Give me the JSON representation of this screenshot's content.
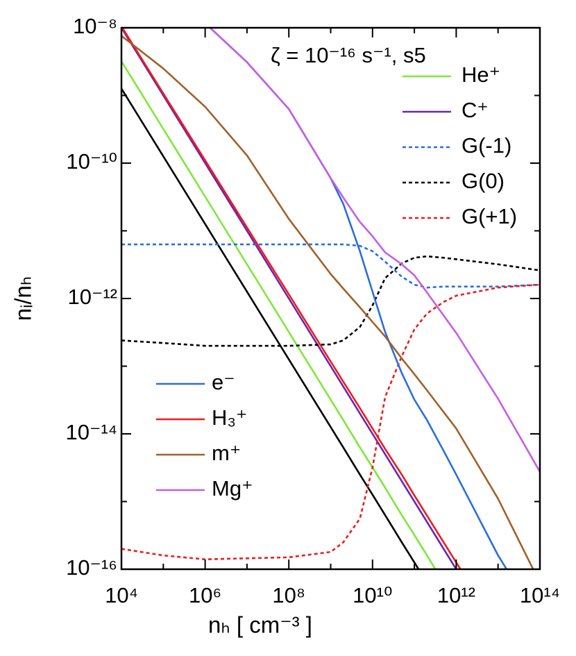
{
  "chart_data": {
    "type": "line",
    "annotation": "ζ = 10⁻¹⁶ s⁻¹, s5",
    "x_label": "nₕ [ cm⁻³ ]",
    "y_label": "nᵢ/nₕ",
    "xscale": "log",
    "yscale": "log",
    "xlim": [
      10000.0,
      100000000000000.0
    ],
    "ylim": [
      1e-16,
      1e-08
    ],
    "xticks": [
      {
        "value": 10000.0,
        "label": "10⁴"
      },
      {
        "value": 1000000.0,
        "label": "10⁶"
      },
      {
        "value": 100000000.0,
        "label": "10⁸"
      },
      {
        "value": 10000000000.0,
        "label": "10¹⁰"
      },
      {
        "value": 1000000000000.0,
        "label": "10¹²"
      },
      {
        "value": 100000000000000.0,
        "label": "10¹⁴"
      }
    ],
    "yticks": [
      {
        "value": 1e-16,
        "label": "10⁻¹⁶"
      },
      {
        "value": 1e-14,
        "label": "10⁻¹⁴"
      },
      {
        "value": 1e-12,
        "label": "10⁻¹²"
      },
      {
        "value": 1e-10,
        "label": "10⁻¹⁰"
      },
      {
        "value": 1e-08,
        "label": "10⁻⁸"
      }
    ],
    "xminorticks": [
      100000.0,
      10000000.0,
      1000000000.0,
      100000000000.0,
      10000000000000.0
    ],
    "yminorticks": [
      1e-15,
      1e-13,
      1e-11,
      1e-09
    ],
    "x": [
      10000.0,
      100000.0,
      1000000.0,
      10000000.0,
      100000000.0,
      1000000000.0,
      2000000000.0,
      5000000000.0,
      10000000000.0,
      20000000000.0,
      50000000000.0,
      100000000000.0,
      200000000000.0,
      500000000000.0,
      1000000000000.0,
      10000000000000.0,
      100000000000000.0
    ],
    "series": [
      {
        "color": "#000000",
        "dash": false,
        "values": [
          1.26e-09,
          1.26e-10,
          1.26e-11,
          1.26e-12,
          1.26e-13,
          1.26e-14,
          6.3e-15,
          2.5e-15,
          1.26e-15,
          6.3e-16,
          2.5e-16,
          1.26e-16,
          6.3e-17,
          null,
          null,
          null,
          null
        ]
      },
      {
        "name": "He⁺",
        "legend": "upper right",
        "color": "#7ee83a",
        "dash": false,
        "values": [
          3.2e-09,
          3.2e-10,
          3.2e-11,
          3.2e-12,
          3.2e-13,
          3.2e-14,
          1.6e-14,
          6.3e-15,
          3.2e-15,
          1.6e-15,
          6.3e-16,
          3.2e-16,
          1.6e-16,
          6.3e-17,
          null,
          null,
          null
        ]
      },
      {
        "name": "C⁺",
        "legend": "upper right",
        "color": "#6a22b8",
        "dash": false,
        "values": [
          1e-08,
          1e-09,
          1e-10,
          1e-11,
          1e-12,
          1e-13,
          5e-14,
          2e-14,
          1e-14,
          5e-15,
          2e-15,
          1e-15,
          5e-16,
          2e-16,
          1e-16,
          1e-17,
          null
        ]
      },
      {
        "name": "G(-1)",
        "legend": "upper right",
        "color": "#2a6de0",
        "dash": true,
        "values": [
          6.3e-12,
          6.3e-12,
          6.3e-12,
          6.3e-12,
          6.3e-12,
          6.3e-12,
          6.3e-12,
          6e-12,
          5e-12,
          3.5e-12,
          2.1e-12,
          1.6e-12,
          1.45e-12,
          1.5e-12,
          1.5e-12,
          1.5e-12,
          1.6e-12
        ]
      },
      {
        "name": "G(0)",
        "legend": "upper right",
        "color": "#000000",
        "dash": true,
        "values": [
          2.4e-13,
          2.2e-13,
          2e-13,
          2e-13,
          2e-13,
          2.1e-13,
          2.4e-13,
          3.8e-13,
          7.9e-13,
          2e-12,
          3.3e-12,
          4e-12,
          4.2e-12,
          4e-12,
          3.8e-12,
          3.2e-12,
          2.6e-12
        ]
      },
      {
        "name": "G(+1)",
        "legend": "upper right",
        "color": "#ee1c1c",
        "dash": true,
        "values": [
          2e-16,
          1.6e-16,
          1.4e-16,
          1.45e-16,
          1.5e-16,
          1.8e-16,
          2.5e-16,
          5.6e-16,
          3.2e-15,
          3.5e-14,
          1.4e-13,
          3.5e-13,
          6e-13,
          8.9e-13,
          1.1e-12,
          1.45e-12,
          1.6e-12
        ]
      },
      {
        "name": "e⁻",
        "legend": "lower left",
        "color": "#2a6de0",
        "dash": false,
        "values": [
          null,
          4.5e-08,
          1.17e-08,
          3.1e-09,
          6.3e-10,
          6e-11,
          2.5e-11,
          5e-12,
          1.26e-12,
          3.2e-13,
          7.9e-14,
          3.2e-14,
          1.6e-14,
          5.6e-15,
          2.5e-15,
          1.6e-16,
          1.6e-17
        ]
      },
      {
        "name": "H₃⁺",
        "legend": "lower left",
        "color": "#ee1c1c",
        "dash": false,
        "values": [
          1.05e-08,
          1.07e-09,
          1.1e-10,
          1.12e-11,
          1.15e-12,
          1.17e-13,
          5.9e-14,
          2.4e-14,
          1.2e-14,
          6e-15,
          2.5e-15,
          1.23e-15,
          6.2e-16,
          2.5e-16,
          1.26e-16,
          1.3e-17,
          null
        ]
      },
      {
        "name": "m⁺",
        "legend": "lower left",
        "color": "#a0612a",
        "dash": false,
        "values": [
          7.6e-09,
          2.5e-09,
          6.8e-10,
          1.3e-10,
          1.5e-11,
          2.3e-12,
          1.4e-12,
          7.4e-13,
          4.5e-13,
          2.75e-13,
          1.3e-13,
          7.6e-14,
          4.4e-14,
          2.1e-14,
          1.2e-14,
          1.1e-15,
          6.3e-17
        ]
      },
      {
        "name": "Mg⁺",
        "legend": "lower left",
        "color": "#c45ee8",
        "dash": false,
        "values": [
          null,
          4.5e-08,
          1.17e-08,
          3.1e-09,
          6.3e-10,
          6e-11,
          3.1e-11,
          1.35e-11,
          8.3e-12,
          4.8e-12,
          3.2e-12,
          2.2e-12,
          1.23e-12,
          5.6e-13,
          3.1e-13,
          3.3e-14,
          2.75e-15
        ]
      }
    ]
  }
}
